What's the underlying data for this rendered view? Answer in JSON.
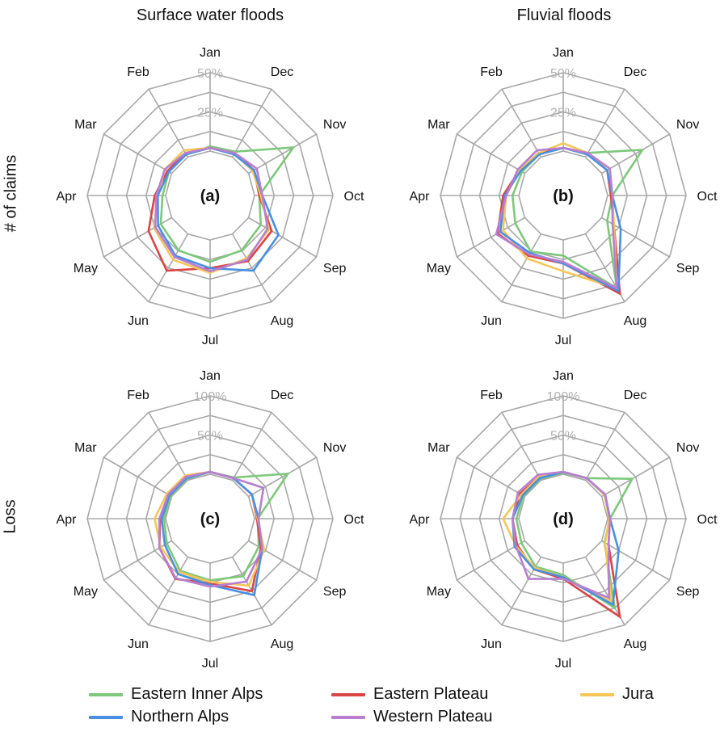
{
  "column_titles": [
    "Surface water floods",
    "Fluvial floods"
  ],
  "row_labels": [
    "# of claims",
    "Loss"
  ],
  "months": [
    "Jan",
    "Feb",
    "Mar",
    "Apr",
    "May",
    "Jun",
    "Jul",
    "Aug",
    "Sep",
    "Oct",
    "Nov",
    "Dec"
  ],
  "legend": [
    {
      "name": "Eastern Inner Alps",
      "color": "#7dc87b"
    },
    {
      "name": "Eastern Plateau",
      "color": "#d94545"
    },
    {
      "name": "Jura",
      "color": "#f5c658"
    },
    {
      "name": "Northern Alps",
      "color": "#4a8fe0"
    },
    {
      "name": "Western Plateau",
      "color": "#b87fd0"
    }
  ],
  "chart_data": [
    {
      "type": "radar",
      "panel_label": "(a)",
      "rlim": [
        0,
        50
      ],
      "tick_labels": [
        "25%",
        "50%"
      ],
      "ticks": [
        25,
        50
      ],
      "axes": [
        "Jan",
        "Feb",
        "Mar",
        "Apr",
        "May",
        "Jun",
        "Jul",
        "Aug",
        "Sep",
        "Oct",
        "Nov",
        "Dec"
      ],
      "series": [
        {
          "name": "Eastern Inner Alps",
          "values": [
            3,
            2,
            2,
            2,
            8,
            12,
            14,
            12,
            9,
            3,
            33,
            4
          ]
        },
        {
          "name": "Eastern Plateau",
          "values": [
            2,
            3,
            3,
            7,
            17,
            27,
            18,
            20,
            17,
            3,
            4,
            3
          ]
        },
        {
          "name": "Jura",
          "values": [
            2,
            5,
            5,
            5,
            13,
            19,
            21,
            18,
            15,
            4,
            3,
            3
          ]
        },
        {
          "name": "Northern Alps",
          "values": [
            2,
            2,
            2,
            5,
            10,
            16,
            18,
            27,
            22,
            5,
            4,
            2
          ]
        },
        {
          "name": "Western Plateau",
          "values": [
            2,
            3,
            5,
            6,
            12,
            17,
            20,
            19,
            14,
            5,
            6,
            3
          ]
        }
      ]
    },
    {
      "type": "radar",
      "panel_label": "(b)",
      "rlim": [
        0,
        50
      ],
      "tick_labels": [
        "25%",
        "50%"
      ],
      "ticks": [
        25,
        50
      ],
      "axes": [
        "Jan",
        "Feb",
        "Mar",
        "Apr",
        "May",
        "Jun",
        "Jul",
        "Aug",
        "Sep",
        "Oct",
        "Nov",
        "Dec"
      ],
      "series": [
        {
          "name": "Eastern Inner Alps",
          "values": [
            2,
            2,
            2,
            4,
            7,
            13,
            10,
            40,
            4,
            3,
            30,
            3
          ]
        },
        {
          "name": "Eastern Plateau",
          "values": [
            2,
            3,
            4,
            10,
            20,
            16,
            15,
            44,
            9,
            2,
            4,
            3
          ]
        },
        {
          "name": "Jura",
          "values": [
            5,
            3,
            4,
            8,
            16,
            18,
            20,
            40,
            9,
            3,
            4,
            3
          ]
        },
        {
          "name": "Northern Alps",
          "values": [
            2,
            2,
            3,
            9,
            18,
            14,
            15,
            42,
            14,
            3,
            4,
            2
          ]
        },
        {
          "name": "Western Plateau",
          "values": [
            2,
            5,
            5,
            8,
            21,
            15,
            14,
            40,
            8,
            3,
            6,
            3
          ]
        }
      ]
    },
    {
      "type": "radar",
      "panel_label": "(c)",
      "rlim": [
        0,
        100
      ],
      "tick_labels": [
        "50%",
        "100%"
      ],
      "ticks": [
        50,
        100
      ],
      "axes": [
        "Jan",
        "Feb",
        "Mar",
        "Apr",
        "May",
        "Jun",
        "Jul",
        "Aug",
        "Sep",
        "Oct",
        "Nov",
        "Dec"
      ],
      "series": [
        {
          "name": "Eastern Inner Alps",
          "values": [
            3,
            2,
            2,
            2,
            7,
            20,
            22,
            28,
            15,
            4,
            58,
            4
          ]
        },
        {
          "name": "Eastern Plateau",
          "values": [
            3,
            5,
            5,
            7,
            18,
            32,
            26,
            50,
            18,
            3,
            5,
            3
          ]
        },
        {
          "name": "Jura",
          "values": [
            3,
            7,
            7,
            14,
            16,
            22,
            24,
            42,
            23,
            4,
            5,
            3
          ]
        },
        {
          "name": "Northern Alps",
          "values": [
            3,
            3,
            3,
            5,
            10,
            25,
            28,
            56,
            20,
            5,
            5,
            3
          ]
        },
        {
          "name": "Western Plateau",
          "values": [
            3,
            5,
            5,
            8,
            18,
            31,
            30,
            36,
            20,
            5,
            22,
            3
          ]
        }
      ]
    },
    {
      "type": "radar",
      "panel_label": "(d)",
      "rlim": [
        0,
        100
      ],
      "tick_labels": [
        "50%",
        "100%"
      ],
      "ticks": [
        50,
        100
      ],
      "axes": [
        "Jan",
        "Feb",
        "Mar",
        "Apr",
        "May",
        "Jun",
        "Jul",
        "Aug",
        "Sep",
        "Oct",
        "Nov",
        "Dec"
      ],
      "series": [
        {
          "name": "Eastern Inner Alps",
          "values": [
            2,
            2,
            2,
            3,
            5,
            14,
            15,
            75,
            4,
            3,
            45,
            3
          ]
        },
        {
          "name": "Eastern Plateau",
          "values": [
            3,
            5,
            7,
            8,
            11,
            18,
            20,
            88,
            10,
            3,
            5,
            3
          ]
        },
        {
          "name": "Jura",
          "values": [
            3,
            5,
            5,
            20,
            13,
            16,
            18,
            66,
            5,
            2,
            4,
            3
          ]
        },
        {
          "name": "Northern Alps",
          "values": [
            3,
            3,
            3,
            8,
            15,
            18,
            18,
            70,
            25,
            3,
            5,
            3
          ]
        },
        {
          "name": "Western Plateau",
          "values": [
            3,
            8,
            10,
            8,
            13,
            32,
            20,
            60,
            10,
            3,
            5,
            3
          ]
        }
      ]
    }
  ]
}
